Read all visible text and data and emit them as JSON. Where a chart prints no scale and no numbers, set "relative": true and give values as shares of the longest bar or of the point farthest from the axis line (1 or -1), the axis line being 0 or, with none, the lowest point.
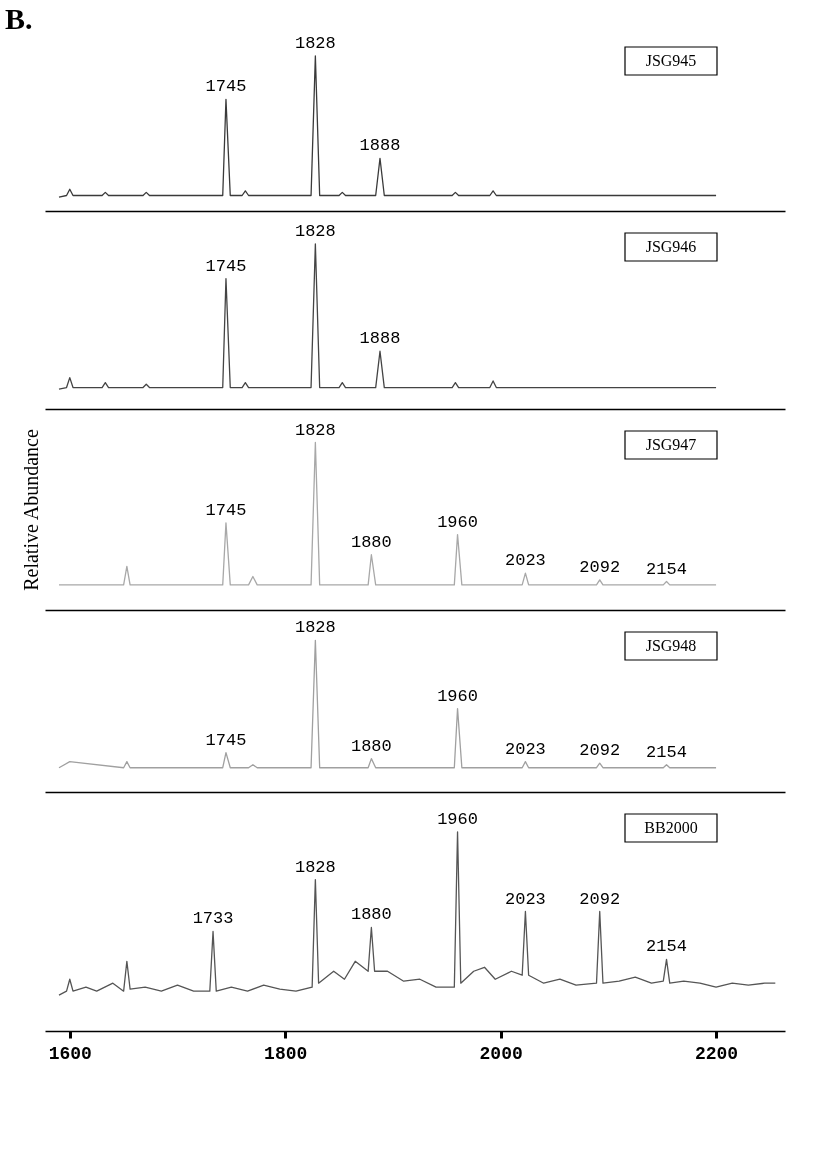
{
  "chart_data": [
    {
      "type": "line",
      "relative": true,
      "xlim": [
        1577,
        2264
      ],
      "tick_labels": false,
      "title": "B.",
      "series": [
        {
          "name": "JSG945",
          "color": "#3a3a3a",
          "x": [
            1590,
            1597,
            1600,
            1603,
            1630,
            1633,
            1636,
            1668,
            1671,
            1674,
            1742,
            1745,
            1749,
            1760,
            1763,
            1766,
            1824,
            1828,
            1832,
            1850,
            1853,
            1856,
            1884,
            1888,
            1892,
            1955,
            1958,
            1961,
            1990,
            1993,
            1996,
            2100,
            2200
          ],
          "values": [
            0.09,
            0.1,
            0.14,
            0.1,
            0.1,
            0.12,
            0.1,
            0.1,
            0.12,
            0.1,
            0.1,
            0.72,
            0.1,
            0.1,
            0.13,
            0.1,
            0.1,
            1.0,
            0.1,
            0.1,
            0.12,
            0.1,
            0.1,
            0.34,
            0.1,
            0.1,
            0.12,
            0.1,
            0.1,
            0.13,
            0.1,
            0.1,
            0.1
          ]
        }
      ],
      "annotations": [
        {
          "text": "1745",
          "x": 1745,
          "y": 0.72
        },
        {
          "text": "1828",
          "x": 1828,
          "y": 1.0
        },
        {
          "text": "1888",
          "x": 1888,
          "y": 0.34
        }
      ]
    },
    {
      "type": "line",
      "relative": true,
      "xlim": [
        1577,
        2264
      ],
      "tick_labels": false,
      "series": [
        {
          "name": "JSG946",
          "color": "#444444",
          "x": [
            1590,
            1597,
            1600,
            1603,
            1630,
            1633,
            1636,
            1668,
            1671,
            1674,
            1742,
            1745,
            1749,
            1760,
            1763,
            1766,
            1824,
            1828,
            1832,
            1850,
            1853,
            1856,
            1884,
            1888,
            1892,
            1955,
            1958,
            1961,
            1990,
            1993,
            1996,
            2100,
            2200
          ],
          "values": [
            0.12,
            0.13,
            0.19,
            0.13,
            0.13,
            0.16,
            0.13,
            0.13,
            0.15,
            0.13,
            0.13,
            0.79,
            0.13,
            0.13,
            0.16,
            0.13,
            0.13,
            1.0,
            0.13,
            0.13,
            0.16,
            0.13,
            0.13,
            0.35,
            0.13,
            0.13,
            0.16,
            0.13,
            0.13,
            0.17,
            0.13,
            0.13,
            0.13
          ]
        }
      ],
      "annotations": [
        {
          "text": "1745",
          "x": 1745,
          "y": 0.79
        },
        {
          "text": "1828",
          "x": 1828,
          "y": 1.0
        },
        {
          "text": "1888",
          "x": 1888,
          "y": 0.35
        }
      ]
    },
    {
      "type": "line",
      "relative": true,
      "xlim": [
        1577,
        2264
      ],
      "tick_labels": false,
      "ylabel": "Relative Abundance",
      "series": [
        {
          "name": "JSG947",
          "color": "#a8a8a8",
          "x": [
            1590,
            1600,
            1650,
            1653,
            1656,
            1742,
            1745,
            1749,
            1766,
            1770,
            1774,
            1824,
            1828,
            1832,
            1877,
            1880,
            1884,
            1957,
            1960,
            1964,
            2020,
            2023,
            2026,
            2089,
            2092,
            2095,
            2151,
            2154,
            2157,
            2200
          ],
          "values": [
            0.15,
            0.15,
            0.15,
            0.26,
            0.15,
            0.15,
            0.52,
            0.15,
            0.15,
            0.2,
            0.15,
            0.15,
            1.0,
            0.15,
            0.15,
            0.33,
            0.15,
            0.15,
            0.45,
            0.15,
            0.15,
            0.22,
            0.15,
            0.15,
            0.18,
            0.15,
            0.15,
            0.17,
            0.15,
            0.15
          ]
        }
      ],
      "annotations": [
        {
          "text": "1745",
          "x": 1745,
          "y": 0.52
        },
        {
          "text": "1828",
          "x": 1828,
          "y": 1.0
        },
        {
          "text": "1880",
          "x": 1880,
          "y": 0.33
        },
        {
          "text": "1960",
          "x": 1960,
          "y": 0.45
        },
        {
          "text": "2023",
          "x": 2023,
          "y": 0.22
        },
        {
          "text": "2092",
          "x": 2092,
          "y": 0.18
        },
        {
          "text": "2154",
          "x": 2154,
          "y": 0.17
        }
      ]
    },
    {
      "type": "line",
      "relative": true,
      "xlim": [
        1577,
        2264
      ],
      "tick_labels": false,
      "series": [
        {
          "name": "JSG948",
          "color": "#a0a0a0",
          "x": [
            1590,
            1600,
            1650,
            1653,
            1656,
            1742,
            1745,
            1749,
            1766,
            1770,
            1774,
            1824,
            1828,
            1832,
            1877,
            1880,
            1884,
            1957,
            1960,
            1964,
            2020,
            2023,
            2026,
            2089,
            2092,
            2095,
            2151,
            2154,
            2157,
            2200
          ],
          "values": [
            0.16,
            0.2,
            0.16,
            0.2,
            0.16,
            0.16,
            0.26,
            0.16,
            0.16,
            0.18,
            0.16,
            0.16,
            1.0,
            0.16,
            0.16,
            0.22,
            0.16,
            0.16,
            0.55,
            0.16,
            0.16,
            0.2,
            0.16,
            0.16,
            0.19,
            0.16,
            0.16,
            0.18,
            0.16,
            0.16
          ]
        }
      ],
      "annotations": [
        {
          "text": "1745",
          "x": 1745,
          "y": 0.26
        },
        {
          "text": "1828",
          "x": 1828,
          "y": 1.0
        },
        {
          "text": "1880",
          "x": 1880,
          "y": 0.22
        },
        {
          "text": "1960",
          "x": 1960,
          "y": 0.55
        },
        {
          "text": "2023",
          "x": 2023,
          "y": 0.2
        },
        {
          "text": "2092",
          "x": 2092,
          "y": 0.19
        },
        {
          "text": "2154",
          "x": 2154,
          "y": 0.18
        }
      ]
    },
    {
      "type": "line",
      "relative": true,
      "xlim": [
        1577,
        2264
      ],
      "xticks": [
        1600,
        1800,
        2000,
        2200
      ],
      "tick_labels": "x",
      "series": [
        {
          "name": "BB2000",
          "color": "#555555",
          "x": [
            1590,
            1597,
            1600,
            1603,
            1615,
            1625,
            1640,
            1650,
            1653,
            1656,
            1670,
            1685,
            1700,
            1715,
            1730,
            1733,
            1736,
            1750,
            1765,
            1780,
            1795,
            1810,
            1825,
            1828,
            1831,
            1845,
            1855,
            1865,
            1877,
            1880,
            1883,
            1895,
            1910,
            1925,
            1940,
            1957,
            1960,
            1963,
            1975,
            1985,
            1995,
            2010,
            2020,
            2023,
            2026,
            2040,
            2055,
            2070,
            2089,
            2092,
            2095,
            2110,
            2125,
            2140,
            2151,
            2154,
            2157,
            2170,
            2185,
            2200,
            2215,
            2230,
            2245,
            2255
          ],
          "values": [
            0.18,
            0.2,
            0.26,
            0.2,
            0.22,
            0.2,
            0.24,
            0.2,
            0.35,
            0.21,
            0.22,
            0.2,
            0.23,
            0.2,
            0.2,
            0.5,
            0.2,
            0.22,
            0.2,
            0.23,
            0.21,
            0.2,
            0.22,
            0.76,
            0.24,
            0.3,
            0.26,
            0.35,
            0.3,
            0.52,
            0.3,
            0.3,
            0.25,
            0.26,
            0.22,
            0.22,
            1.0,
            0.24,
            0.3,
            0.32,
            0.26,
            0.3,
            0.28,
            0.6,
            0.28,
            0.24,
            0.26,
            0.23,
            0.24,
            0.6,
            0.24,
            0.25,
            0.27,
            0.24,
            0.25,
            0.36,
            0.24,
            0.25,
            0.24,
            0.22,
            0.24,
            0.23,
            0.24,
            0.24
          ]
        }
      ],
      "annotations": [
        {
          "text": "1733",
          "x": 1733,
          "y": 0.5
        },
        {
          "text": "1828",
          "x": 1828,
          "y": 0.76
        },
        {
          "text": "1880",
          "x": 1880,
          "y": 0.52
        },
        {
          "text": "1960",
          "x": 1960,
          "y": 1.0
        },
        {
          "text": "2023",
          "x": 2023,
          "y": 0.6
        },
        {
          "text": "2092",
          "x": 2092,
          "y": 0.6
        },
        {
          "text": "2154",
          "x": 2154,
          "y": 0.36
        }
      ]
    }
  ]
}
